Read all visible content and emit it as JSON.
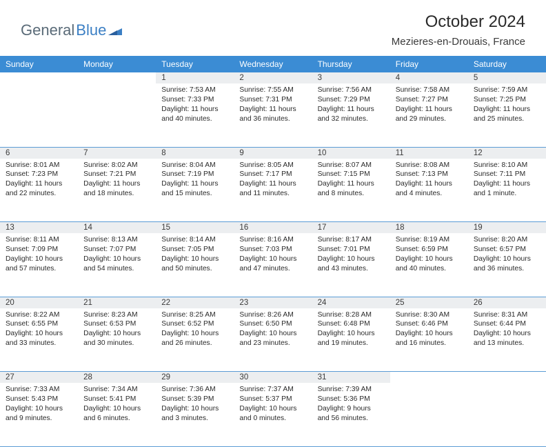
{
  "logo": {
    "text1": "General",
    "text2": "Blue"
  },
  "title": "October 2024",
  "location": "Mezieres-en-Drouais, France",
  "colors": {
    "header_bg": "#3b8cd4",
    "header_text": "#ffffff",
    "daynum_bg": "#eceef0",
    "border": "#5a9bd5",
    "logo_gray": "#5a6b78",
    "logo_blue": "#3b7fc4"
  },
  "weekdays": [
    "Sunday",
    "Monday",
    "Tuesday",
    "Wednesday",
    "Thursday",
    "Friday",
    "Saturday"
  ],
  "weeks": [
    {
      "nums": [
        "",
        "",
        "1",
        "2",
        "3",
        "4",
        "5"
      ],
      "cells": [
        null,
        null,
        {
          "sr": "Sunrise: 7:53 AM",
          "ss": "Sunset: 7:33 PM",
          "d1": "Daylight: 11 hours",
          "d2": "and 40 minutes."
        },
        {
          "sr": "Sunrise: 7:55 AM",
          "ss": "Sunset: 7:31 PM",
          "d1": "Daylight: 11 hours",
          "d2": "and 36 minutes."
        },
        {
          "sr": "Sunrise: 7:56 AM",
          "ss": "Sunset: 7:29 PM",
          "d1": "Daylight: 11 hours",
          "d2": "and 32 minutes."
        },
        {
          "sr": "Sunrise: 7:58 AM",
          "ss": "Sunset: 7:27 PM",
          "d1": "Daylight: 11 hours",
          "d2": "and 29 minutes."
        },
        {
          "sr": "Sunrise: 7:59 AM",
          "ss": "Sunset: 7:25 PM",
          "d1": "Daylight: 11 hours",
          "d2": "and 25 minutes."
        }
      ]
    },
    {
      "nums": [
        "6",
        "7",
        "8",
        "9",
        "10",
        "11",
        "12"
      ],
      "cells": [
        {
          "sr": "Sunrise: 8:01 AM",
          "ss": "Sunset: 7:23 PM",
          "d1": "Daylight: 11 hours",
          "d2": "and 22 minutes."
        },
        {
          "sr": "Sunrise: 8:02 AM",
          "ss": "Sunset: 7:21 PM",
          "d1": "Daylight: 11 hours",
          "d2": "and 18 minutes."
        },
        {
          "sr": "Sunrise: 8:04 AM",
          "ss": "Sunset: 7:19 PM",
          "d1": "Daylight: 11 hours",
          "d2": "and 15 minutes."
        },
        {
          "sr": "Sunrise: 8:05 AM",
          "ss": "Sunset: 7:17 PM",
          "d1": "Daylight: 11 hours",
          "d2": "and 11 minutes."
        },
        {
          "sr": "Sunrise: 8:07 AM",
          "ss": "Sunset: 7:15 PM",
          "d1": "Daylight: 11 hours",
          "d2": "and 8 minutes."
        },
        {
          "sr": "Sunrise: 8:08 AM",
          "ss": "Sunset: 7:13 PM",
          "d1": "Daylight: 11 hours",
          "d2": "and 4 minutes."
        },
        {
          "sr": "Sunrise: 8:10 AM",
          "ss": "Sunset: 7:11 PM",
          "d1": "Daylight: 11 hours",
          "d2": "and 1 minute."
        }
      ]
    },
    {
      "nums": [
        "13",
        "14",
        "15",
        "16",
        "17",
        "18",
        "19"
      ],
      "cells": [
        {
          "sr": "Sunrise: 8:11 AM",
          "ss": "Sunset: 7:09 PM",
          "d1": "Daylight: 10 hours",
          "d2": "and 57 minutes."
        },
        {
          "sr": "Sunrise: 8:13 AM",
          "ss": "Sunset: 7:07 PM",
          "d1": "Daylight: 10 hours",
          "d2": "and 54 minutes."
        },
        {
          "sr": "Sunrise: 8:14 AM",
          "ss": "Sunset: 7:05 PM",
          "d1": "Daylight: 10 hours",
          "d2": "and 50 minutes."
        },
        {
          "sr": "Sunrise: 8:16 AM",
          "ss": "Sunset: 7:03 PM",
          "d1": "Daylight: 10 hours",
          "d2": "and 47 minutes."
        },
        {
          "sr": "Sunrise: 8:17 AM",
          "ss": "Sunset: 7:01 PM",
          "d1": "Daylight: 10 hours",
          "d2": "and 43 minutes."
        },
        {
          "sr": "Sunrise: 8:19 AM",
          "ss": "Sunset: 6:59 PM",
          "d1": "Daylight: 10 hours",
          "d2": "and 40 minutes."
        },
        {
          "sr": "Sunrise: 8:20 AM",
          "ss": "Sunset: 6:57 PM",
          "d1": "Daylight: 10 hours",
          "d2": "and 36 minutes."
        }
      ]
    },
    {
      "nums": [
        "20",
        "21",
        "22",
        "23",
        "24",
        "25",
        "26"
      ],
      "cells": [
        {
          "sr": "Sunrise: 8:22 AM",
          "ss": "Sunset: 6:55 PM",
          "d1": "Daylight: 10 hours",
          "d2": "and 33 minutes."
        },
        {
          "sr": "Sunrise: 8:23 AM",
          "ss": "Sunset: 6:53 PM",
          "d1": "Daylight: 10 hours",
          "d2": "and 30 minutes."
        },
        {
          "sr": "Sunrise: 8:25 AM",
          "ss": "Sunset: 6:52 PM",
          "d1": "Daylight: 10 hours",
          "d2": "and 26 minutes."
        },
        {
          "sr": "Sunrise: 8:26 AM",
          "ss": "Sunset: 6:50 PM",
          "d1": "Daylight: 10 hours",
          "d2": "and 23 minutes."
        },
        {
          "sr": "Sunrise: 8:28 AM",
          "ss": "Sunset: 6:48 PM",
          "d1": "Daylight: 10 hours",
          "d2": "and 19 minutes."
        },
        {
          "sr": "Sunrise: 8:30 AM",
          "ss": "Sunset: 6:46 PM",
          "d1": "Daylight: 10 hours",
          "d2": "and 16 minutes."
        },
        {
          "sr": "Sunrise: 8:31 AM",
          "ss": "Sunset: 6:44 PM",
          "d1": "Daylight: 10 hours",
          "d2": "and 13 minutes."
        }
      ]
    },
    {
      "nums": [
        "27",
        "28",
        "29",
        "30",
        "31",
        "",
        ""
      ],
      "cells": [
        {
          "sr": "Sunrise: 7:33 AM",
          "ss": "Sunset: 5:43 PM",
          "d1": "Daylight: 10 hours",
          "d2": "and 9 minutes."
        },
        {
          "sr": "Sunrise: 7:34 AM",
          "ss": "Sunset: 5:41 PM",
          "d1": "Daylight: 10 hours",
          "d2": "and 6 minutes."
        },
        {
          "sr": "Sunrise: 7:36 AM",
          "ss": "Sunset: 5:39 PM",
          "d1": "Daylight: 10 hours",
          "d2": "and 3 minutes."
        },
        {
          "sr": "Sunrise: 7:37 AM",
          "ss": "Sunset: 5:37 PM",
          "d1": "Daylight: 10 hours",
          "d2": "and 0 minutes."
        },
        {
          "sr": "Sunrise: 7:39 AM",
          "ss": "Sunset: 5:36 PM",
          "d1": "Daylight: 9 hours",
          "d2": "and 56 minutes."
        },
        null,
        null
      ]
    }
  ]
}
